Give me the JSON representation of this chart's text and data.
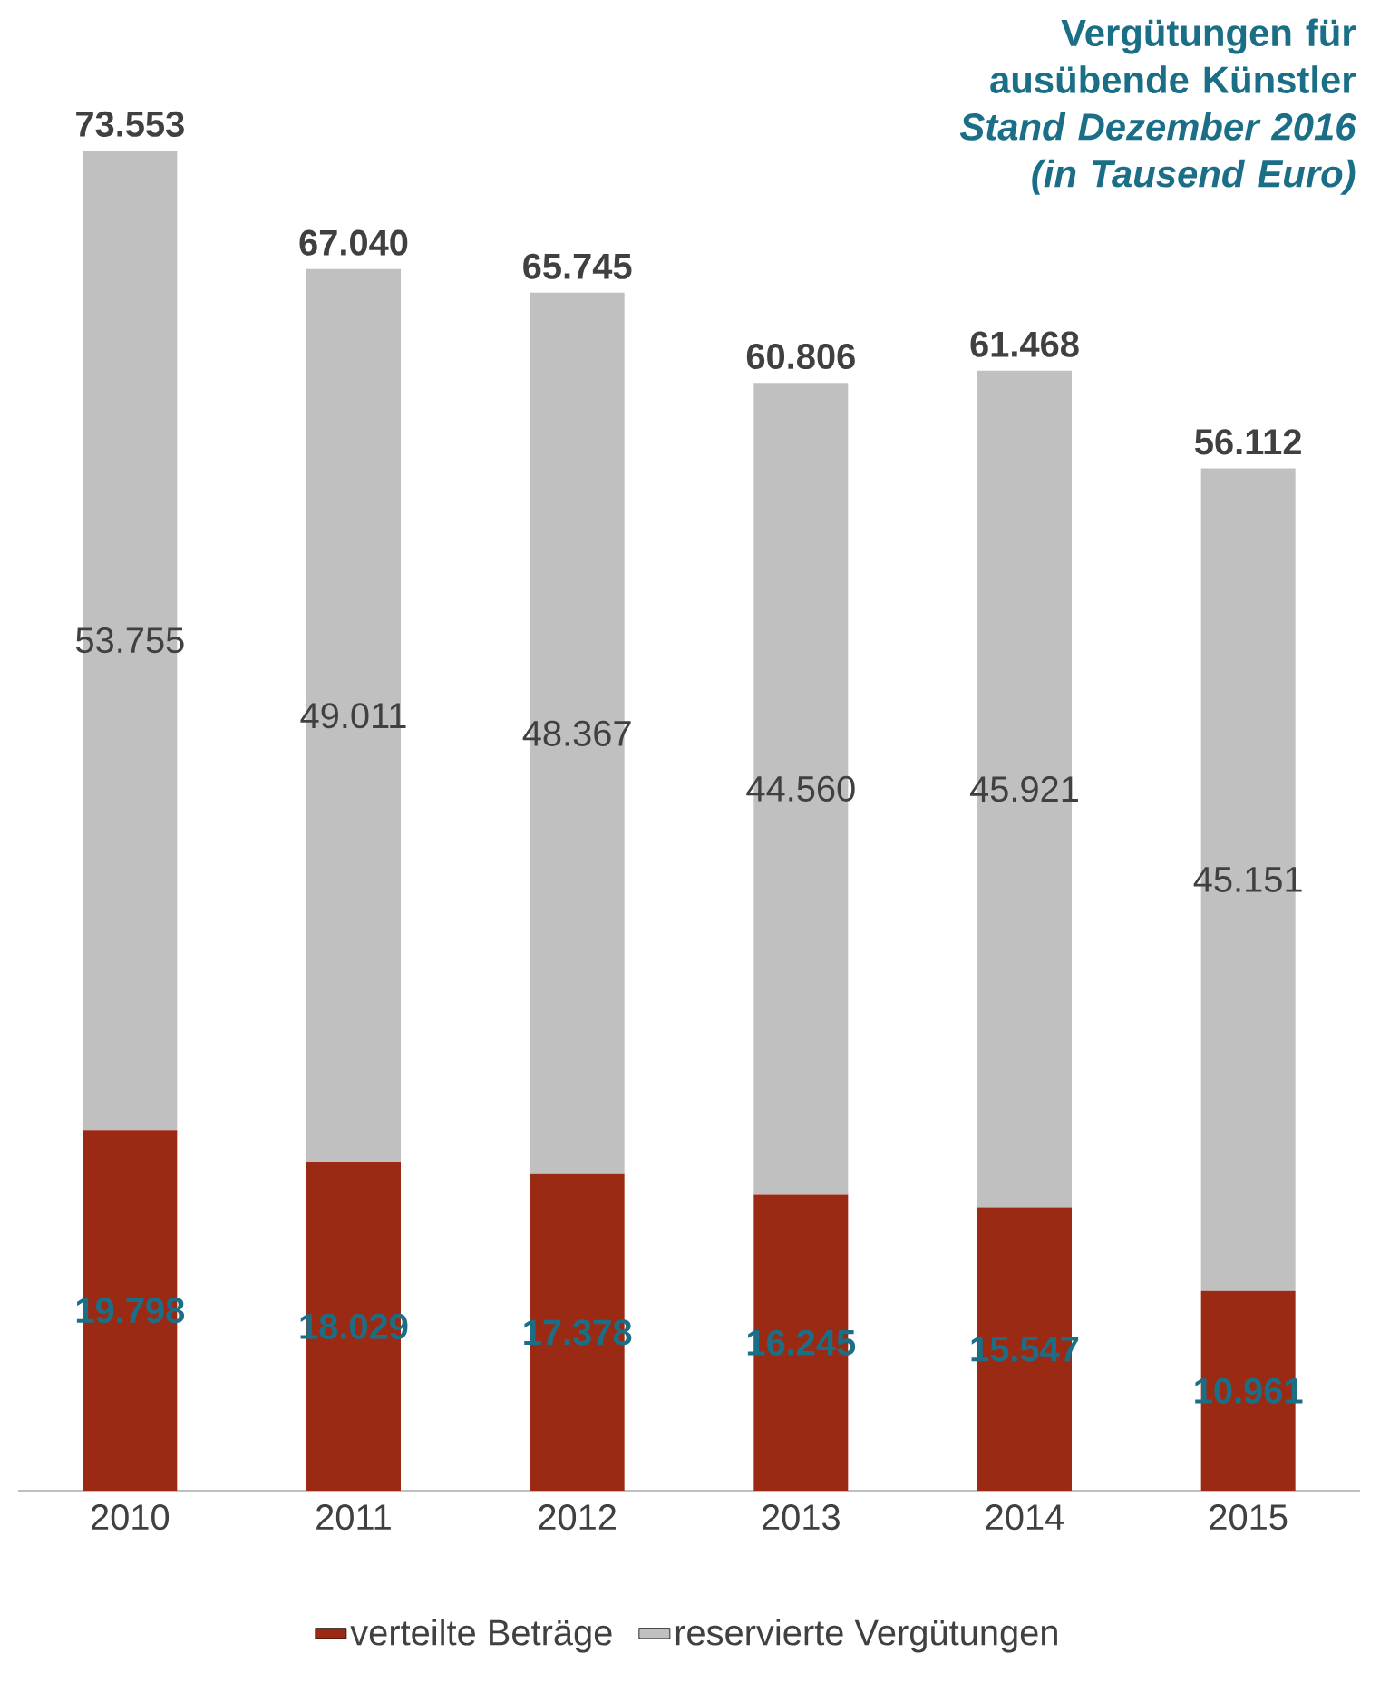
{
  "chart_data": {
    "type": "bar",
    "title": "Vergütungen für ausübende Künstler",
    "subtitle": "Stand Dezember 2016 (in Tausend Euro)",
    "categories": [
      "2010",
      "2011",
      "2012",
      "2013",
      "2014",
      "2015"
    ],
    "stacked": true,
    "legend": "bottom",
    "series": [
      {
        "name": "verteilte Beträge",
        "color": "#9b2a14",
        "values": [
          19798,
          18029,
          17378,
          16245,
          15547,
          10961
        ],
        "value_labels": [
          "19.798",
          "18.029",
          "17.378",
          "16.245",
          "15.547",
          "10.961"
        ]
      },
      {
        "name": "reservierte Vergütungen",
        "color": "#c0c0c0",
        "values": [
          53755,
          49011,
          48367,
          44560,
          45921,
          45151
        ],
        "value_labels": [
          "53.755",
          "49.011",
          "48.367",
          "44.560",
          "45.921",
          "45.151"
        ]
      }
    ],
    "totals": [
      "73.553",
      "67.040",
      "65.745",
      "60.806",
      "61.468",
      "56.112"
    ]
  }
}
